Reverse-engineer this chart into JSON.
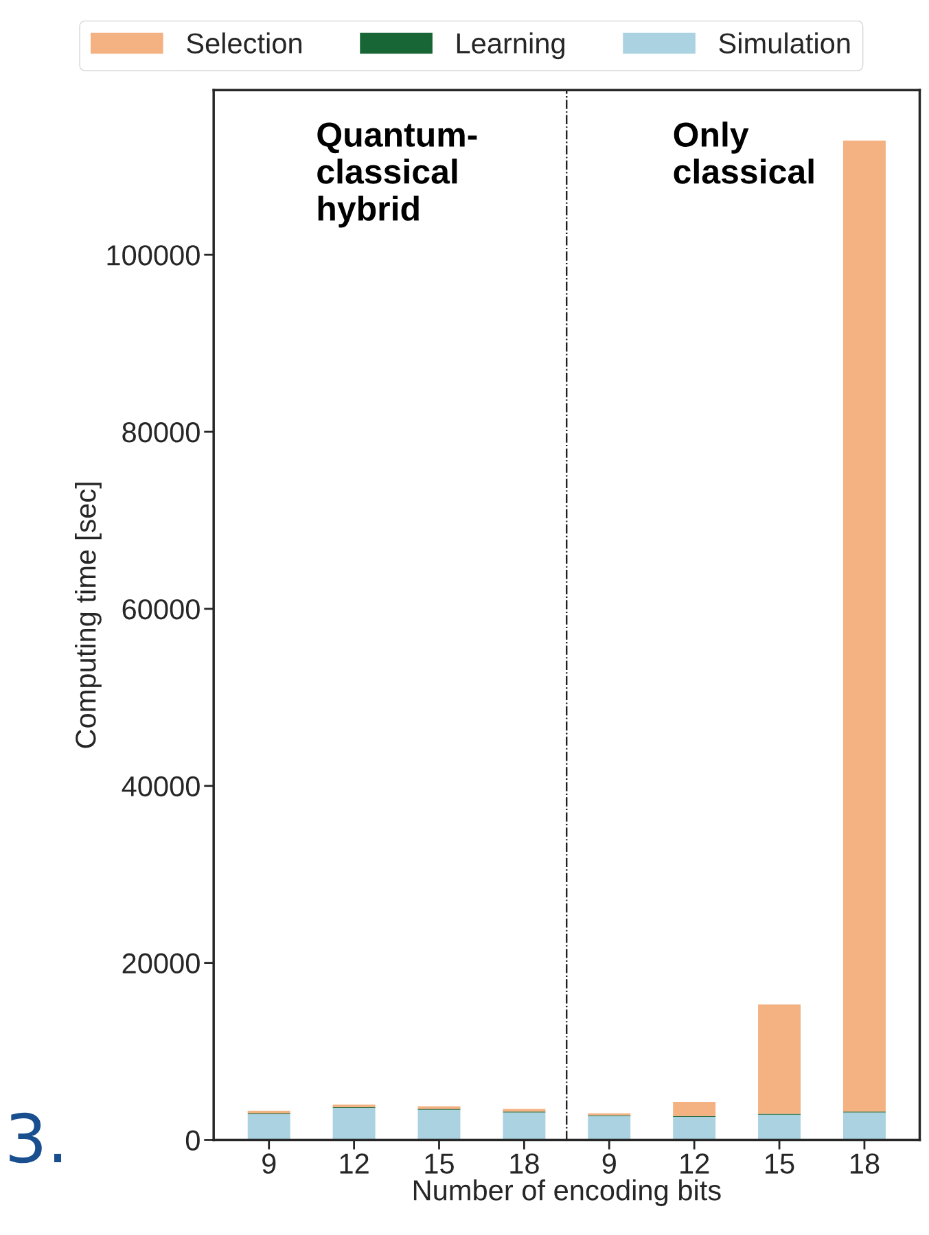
{
  "chart_data": {
    "type": "bar",
    "stacked": true,
    "xlabel": "Number of encoding bits",
    "ylabel": "Computing time [sec]",
    "categories": [
      "9",
      "12",
      "15",
      "18",
      "9",
      "12",
      "15",
      "18"
    ],
    "series": [
      {
        "name": "Simulation",
        "color": "#abd2e0",
        "values": [
          2900,
          3600,
          3400,
          3100,
          2700,
          2600,
          2850,
          3100
        ]
      },
      {
        "name": "Learning",
        "color": "#186536",
        "values": [
          100,
          100,
          100,
          100,
          100,
          100,
          100,
          100
        ]
      },
      {
        "name": "Selection",
        "color": "#f4b181",
        "values": [
          300,
          300,
          300,
          300,
          200,
          1600,
          12350,
          109700
        ]
      }
    ],
    "ylim": [
      0,
      118600
    ],
    "yticks": [
      0,
      20000,
      40000,
      60000,
      80000,
      100000
    ],
    "annotations": [
      "Quantum-\nclassical\nhybrid",
      "Only\nclassical",
      "3."
    ],
    "legend": "top",
    "grid": false
  }
}
